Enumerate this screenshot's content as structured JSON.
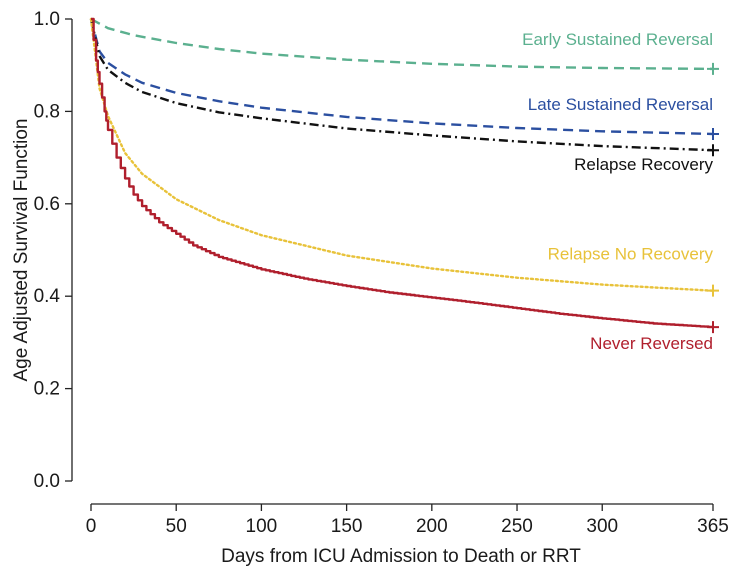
{
  "chart_data": {
    "type": "line",
    "title": "",
    "xlabel": "Days from ICU Admission to Death or RRT",
    "ylabel": "Age Adjusted Survival Function",
    "xlim": [
      0,
      365
    ],
    "ylim": [
      0,
      1
    ],
    "xticks": [
      0,
      50,
      100,
      150,
      200,
      250,
      300,
      365
    ],
    "xtick_labels": [
      "0",
      "50",
      "100",
      "150",
      "200",
      "250",
      "300",
      "365"
    ],
    "yticks": [
      0,
      0.2,
      0.4,
      0.6,
      0.8,
      1
    ],
    "ytick_labels": [
      "0.0",
      "0.2",
      "0.4",
      "0.6",
      "0.8",
      "1.0"
    ],
    "grid": false,
    "legend": "inline labels at right end of each curve",
    "series": [
      {
        "name": "Early Sustained Reversal",
        "color": "#5bb08f",
        "style": "dashed",
        "x": [
          0,
          10,
          25,
          50,
          75,
          100,
          150,
          200,
          250,
          300,
          365
        ],
        "y": [
          1.0,
          0.98,
          0.965,
          0.948,
          0.935,
          0.925,
          0.912,
          0.903,
          0.897,
          0.894,
          0.892
        ]
      },
      {
        "name": "Late Sustained Reversal",
        "color": "#2b4fa0",
        "style": "dashed",
        "x": [
          0,
          5,
          10,
          20,
          30,
          50,
          75,
          100,
          150,
          200,
          250,
          300,
          365
        ],
        "y": [
          1.0,
          0.93,
          0.905,
          0.88,
          0.862,
          0.84,
          0.822,
          0.808,
          0.788,
          0.774,
          0.764,
          0.757,
          0.751
        ]
      },
      {
        "name": "Relapse Recovery",
        "color": "#111111",
        "style": "dashdot",
        "x": [
          0,
          5,
          10,
          20,
          30,
          50,
          75,
          100,
          150,
          200,
          250,
          300,
          365
        ],
        "y": [
          1.0,
          0.92,
          0.89,
          0.862,
          0.842,
          0.818,
          0.798,
          0.785,
          0.763,
          0.748,
          0.735,
          0.725,
          0.716
        ]
      },
      {
        "name": "Relapse No Recovery",
        "color": "#e8c23a",
        "style": "dotted",
        "x": [
          0,
          5,
          10,
          20,
          30,
          50,
          75,
          100,
          150,
          200,
          250,
          300,
          365
        ],
        "y": [
          1.0,
          0.85,
          0.79,
          0.71,
          0.665,
          0.61,
          0.565,
          0.532,
          0.488,
          0.46,
          0.44,
          0.425,
          0.412
        ]
      },
      {
        "name": "Never Reversed",
        "color": "#b01f2d",
        "style": "step",
        "x": [
          0,
          3,
          5,
          8,
          10,
          15,
          20,
          25,
          30,
          40,
          50,
          60,
          75,
          100,
          125,
          150,
          175,
          200,
          225,
          250,
          275,
          300,
          330,
          365
        ],
        "y": [
          1.0,
          0.91,
          0.86,
          0.8,
          0.76,
          0.7,
          0.655,
          0.62,
          0.595,
          0.56,
          0.535,
          0.51,
          0.485,
          0.458,
          0.438,
          0.422,
          0.408,
          0.397,
          0.386,
          0.374,
          0.362,
          0.352,
          0.341,
          0.333
        ]
      }
    ]
  }
}
